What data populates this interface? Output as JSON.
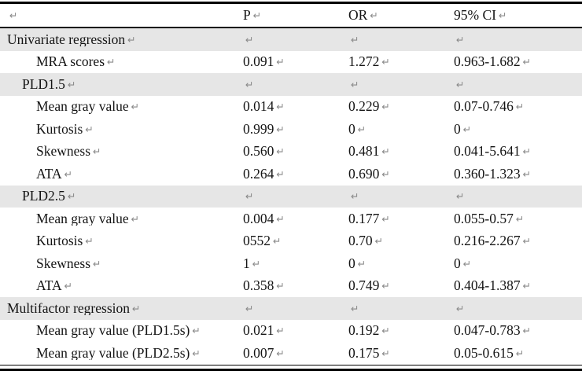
{
  "table": {
    "return_mark": "↵",
    "colors": {
      "section_bg": "#e6e6e6",
      "mark_gray": "#8a8a8a",
      "text": "#141414",
      "border": "#000000"
    },
    "columns": [
      {
        "label": ""
      },
      {
        "label": "P"
      },
      {
        "label": "OR"
      },
      {
        "label": "95% CI"
      }
    ],
    "rows": [
      {
        "label": "Univariate regression",
        "indent": 0,
        "section": true,
        "p": "",
        "or": "",
        "ci": ""
      },
      {
        "label": "MRA scores",
        "indent": 2,
        "section": false,
        "p": "0.091",
        "or": "1.272",
        "ci": "0.963-1.682"
      },
      {
        "label": "PLD1.5",
        "indent": 1,
        "section": true,
        "p": "",
        "or": "",
        "ci": ""
      },
      {
        "label": "Mean gray value",
        "indent": 2,
        "section": false,
        "p": "0.014",
        "or": "0.229",
        "ci": "0.07-0.746"
      },
      {
        "label": "Kurtosis",
        "indent": 2,
        "section": false,
        "p": "0.999",
        "or": "0",
        "ci": "0"
      },
      {
        "label": "Skewness",
        "indent": 2,
        "section": false,
        "p": "0.560",
        "or": "0.481",
        "ci": "0.041-5.641"
      },
      {
        "label": "ATA",
        "indent": 2,
        "section": false,
        "p": "0.264",
        "or": "0.690",
        "ci": "0.360-1.323"
      },
      {
        "label": "PLD2.5",
        "indent": 1,
        "section": true,
        "p": "",
        "or": "",
        "ci": ""
      },
      {
        "label": "Mean gray value",
        "indent": 2,
        "section": false,
        "p": "0.004",
        "or": "0.177",
        "ci": "0.055-0.57"
      },
      {
        "label": "Kurtosis",
        "indent": 2,
        "section": false,
        "p": "0552",
        "or": "0.70",
        "ci": "0.216-2.267"
      },
      {
        "label": "Skewness",
        "indent": 2,
        "section": false,
        "p": "1",
        "or": "0",
        "ci": "0"
      },
      {
        "label": "ATA",
        "indent": 2,
        "section": false,
        "p": "0.358",
        "or": "0.749",
        "ci": "0.404-1.387"
      },
      {
        "label": "Multifactor regression",
        "indent": 0,
        "section": true,
        "p": "",
        "or": "",
        "ci": ""
      },
      {
        "label": "Mean gray value (PLD1.5s)",
        "indent": 2,
        "section": false,
        "p": "0.021",
        "or": "0.192",
        "ci": "0.047-0.783"
      },
      {
        "label": "Mean gray value (PLD2.5s)",
        "indent": 2,
        "section": false,
        "p": "0.007",
        "or": "0.175",
        "ci": "0.05-0.615"
      }
    ]
  }
}
